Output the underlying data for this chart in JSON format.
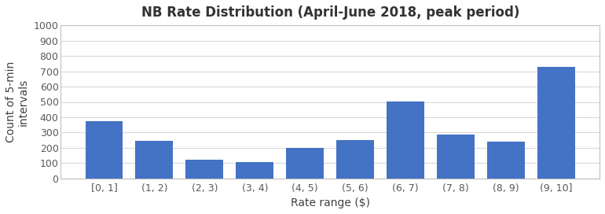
{
  "title": "NB Rate Distribution (April-June 2018, peak period)",
  "xlabel": "Rate range ($)",
  "ylabel": "Count of 5-min\nintervals",
  "categories": [
    "[0, 1]",
    "(1, 2)",
    "(2, 3)",
    "(3, 4)",
    "(4, 5)",
    "(5, 6)",
    "(6, 7)",
    "(7, 8)",
    "(8, 9)",
    "(9, 10]"
  ],
  "values": [
    375,
    245,
    125,
    110,
    200,
    250,
    505,
    285,
    240,
    730
  ],
  "bar_color": "#4472C4",
  "ylim": [
    0,
    1000
  ],
  "yticks": [
    0,
    100,
    200,
    300,
    400,
    500,
    600,
    700,
    800,
    900,
    1000
  ],
  "background_color": "#ffffff",
  "grid_color": "#d9d9d9",
  "title_fontsize": 12,
  "axis_label_fontsize": 10,
  "tick_fontsize": 9,
  "bar_width": 0.75
}
